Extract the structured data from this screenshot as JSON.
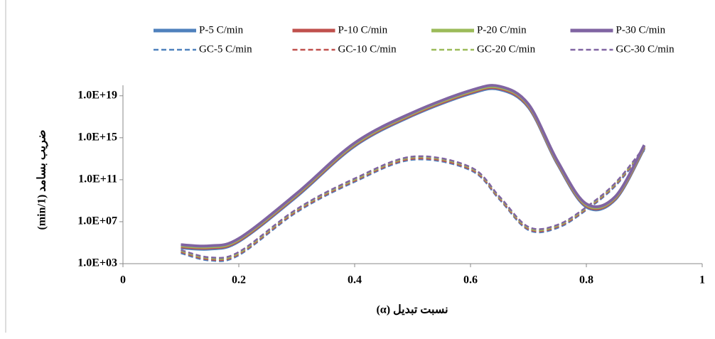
{
  "chart_data": {
    "type": "line",
    "x_label": "نسبت تبدیل (α)",
    "y_label": "ضریب بسامد (1/min)",
    "x": [
      0.1,
      0.15,
      0.2,
      0.3,
      0.4,
      0.5,
      0.6,
      0.65,
      0.7,
      0.75,
      0.8,
      0.85,
      0.9
    ],
    "series": [
      {
        "name": "P-5 C/min",
        "color": "#4f81bd",
        "dash": false,
        "values": [
          32000.0,
          25000.0,
          130000.0,
          2500000000.0,
          160000000000000.0,
          1.3e+17,
          1.6e+19,
          4e+19,
          8e+17,
          3200000000000.0,
          250000000.0,
          1300000000.0,
          100000000000000.0
        ]
      },
      {
        "name": "P-10 C/min",
        "color": "#c0504d",
        "dash": false,
        "values": [
          40000.0,
          32000.0,
          160000.0,
          3200000000.0,
          200000000000000.0,
          1.6e+17,
          2e+19,
          5e+19,
          1e+18,
          4000000000000.0,
          320000000.0,
          1600000000.0,
          130000000000000.0
        ]
      },
      {
        "name": "P-20 C/min",
        "color": "#9bbb59",
        "dash": false,
        "values": [
          50000.0,
          40000.0,
          200000.0,
          4000000000.0,
          250000000000000.0,
          2e+17,
          2.5e+19,
          6.3e+19,
          1.3e+18,
          5000000000000.0,
          400000000.0,
          2000000000.0,
          160000000000000.0
        ]
      },
      {
        "name": "P-30 C/min",
        "color": "#8064a2",
        "dash": false,
        "values": [
          63000.0,
          50000.0,
          250000.0,
          5000000000.0,
          320000000000000.0,
          2.5e+17,
          3.2e+19,
          8e+19,
          1.6e+18,
          6300000000000.0,
          500000000.0,
          2500000000.0,
          200000000000000.0
        ]
      },
      {
        "name": "GC-5 C/min",
        "color": "#4f81bd",
        "dash": true,
        "values": [
          10000.0,
          2000.0,
          6300.0,
          80000000.0,
          63000000000.0,
          8000000000000.0,
          800000000000.0,
          1300000000.0,
          1600000.0,
          2500000.0,
          130000000.0,
          25000000000.0,
          63000000000000.0
        ]
      },
      {
        "name": "GC-10 C/min",
        "color": "#c0504d",
        "dash": true,
        "values": [
          13000.0,
          2500.0,
          8000.0,
          100000000.0,
          80000000000.0,
          10000000000000.0,
          1000000000000.0,
          1600000000.0,
          2000000.0,
          3200000.0,
          160000000.0,
          32000000000.0,
          80000000000000.0
        ]
      },
      {
        "name": "GC-20 C/min",
        "color": "#9bbb59",
        "dash": true,
        "values": [
          16000.0,
          3200.0,
          10000.0,
          130000000.0,
          100000000000.0,
          13000000000000.0,
          1300000000000.0,
          2000000000.0,
          2500000.0,
          4000000.0,
          200000000.0,
          40000000000.0,
          100000000000000.0
        ]
      },
      {
        "name": "GC-30 C/min",
        "color": "#8064a2",
        "dash": true,
        "values": [
          20000.0,
          4000.0,
          13000.0,
          160000000.0,
          130000000000.0,
          16000000000000.0,
          1600000000000.0,
          2500000000.0,
          3200000.0,
          5000000.0,
          250000000.0,
          50000000000.0,
          130000000000000.0
        ]
      }
    ],
    "xlim": [
      0,
      1
    ],
    "xticks": [
      0,
      0.2,
      0.4,
      0.6,
      0.8,
      1
    ],
    "ylim": [
      1000,
      1e+20
    ],
    "yticks": [
      {
        "value": 1000,
        "label": "1.0E+03"
      },
      {
        "value": 10000000.0,
        "label": "1.0E+07"
      },
      {
        "value": 100000000000.0,
        "label": "1.0E+11"
      },
      {
        "value": 1000000000000000.0,
        "label": "1.0E+15"
      },
      {
        "value": 1e+19,
        "label": "1.0E+19"
      }
    ],
    "log_y": true,
    "grid": false,
    "legend": "top"
  }
}
